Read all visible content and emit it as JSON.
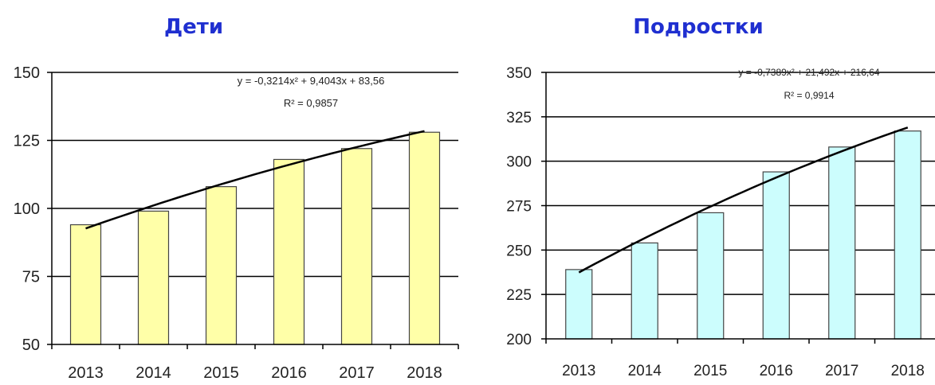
{
  "colors": {
    "title": "#1f2fd0",
    "grid": "#000000",
    "trend": "#000000",
    "bar_outline": "#444444"
  },
  "chart_data": [
    {
      "type": "bar",
      "title": "Дети",
      "categories": [
        "2013",
        "2014",
        "2015",
        "2016",
        "2017",
        "2018"
      ],
      "values": [
        94,
        99,
        108,
        118,
        122,
        128
      ],
      "ylim": [
        50,
        150
      ],
      "yticks": [
        "150",
        "125",
        "100",
        "75",
        "50"
      ],
      "grid": true,
      "bar_color": "#ffffa8",
      "trendline": {
        "type": "polynomial-2",
        "a": -0.3214,
        "b": 9.4043,
        "c": 83.56,
        "equation": "y = -0,3214x² + 9,4043x + 83,56",
        "r2": "R² = 0,9857"
      }
    },
    {
      "type": "bar",
      "title": "Подростки",
      "categories": [
        "2013",
        "2014",
        "2015",
        "2016",
        "2017",
        "2018"
      ],
      "values": [
        239,
        254,
        271,
        294,
        308,
        317
      ],
      "ylim": [
        200,
        350
      ],
      "yticks": [
        "350",
        "325",
        "300",
        "275",
        "250",
        "225",
        "200"
      ],
      "grid": true,
      "bar_color": "#ccfdfd",
      "trendline": {
        "type": "polynomial-2",
        "a": -0.7389,
        "b": 21.492,
        "c": 216.64,
        "equation": "y = -0,7389x² + 21,492x + 216,64",
        "r2": "R² = 0,9914"
      }
    }
  ]
}
